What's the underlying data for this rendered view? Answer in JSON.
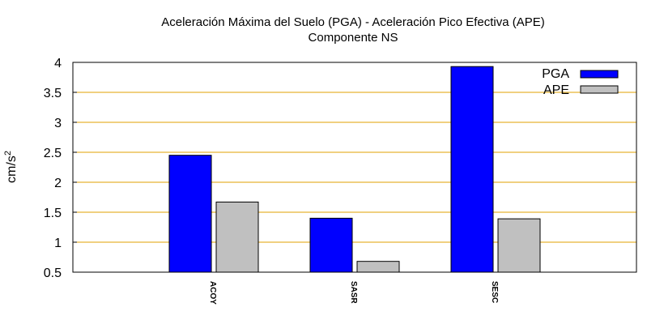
{
  "chart_data": {
    "type": "bar",
    "title": "Aceleración Máxima del Suelo (PGA) -  Aceleración Pico Efectiva (APE)",
    "subtitle": "Componente NS",
    "ylabel_base": "cm/s",
    "ylabel_exp": "2",
    "xlabel": "",
    "categories": [
      "ACOY",
      "SASR",
      "SESC"
    ],
    "series": [
      {
        "name": "PGA",
        "values": [
          2.45,
          1.4,
          3.93
        ],
        "color": "#0000ff"
      },
      {
        "name": "APE",
        "values": [
          1.67,
          0.68,
          1.39
        ],
        "color": "#c0c0c0"
      }
    ],
    "ylim": [
      0.5,
      4
    ],
    "yticks": [
      "0.5",
      "1",
      "1.5",
      "2",
      "2.5",
      "3",
      "3.5",
      "4"
    ],
    "grid": true,
    "grid_color": "#e0a000",
    "legend_position": "top-right"
  }
}
